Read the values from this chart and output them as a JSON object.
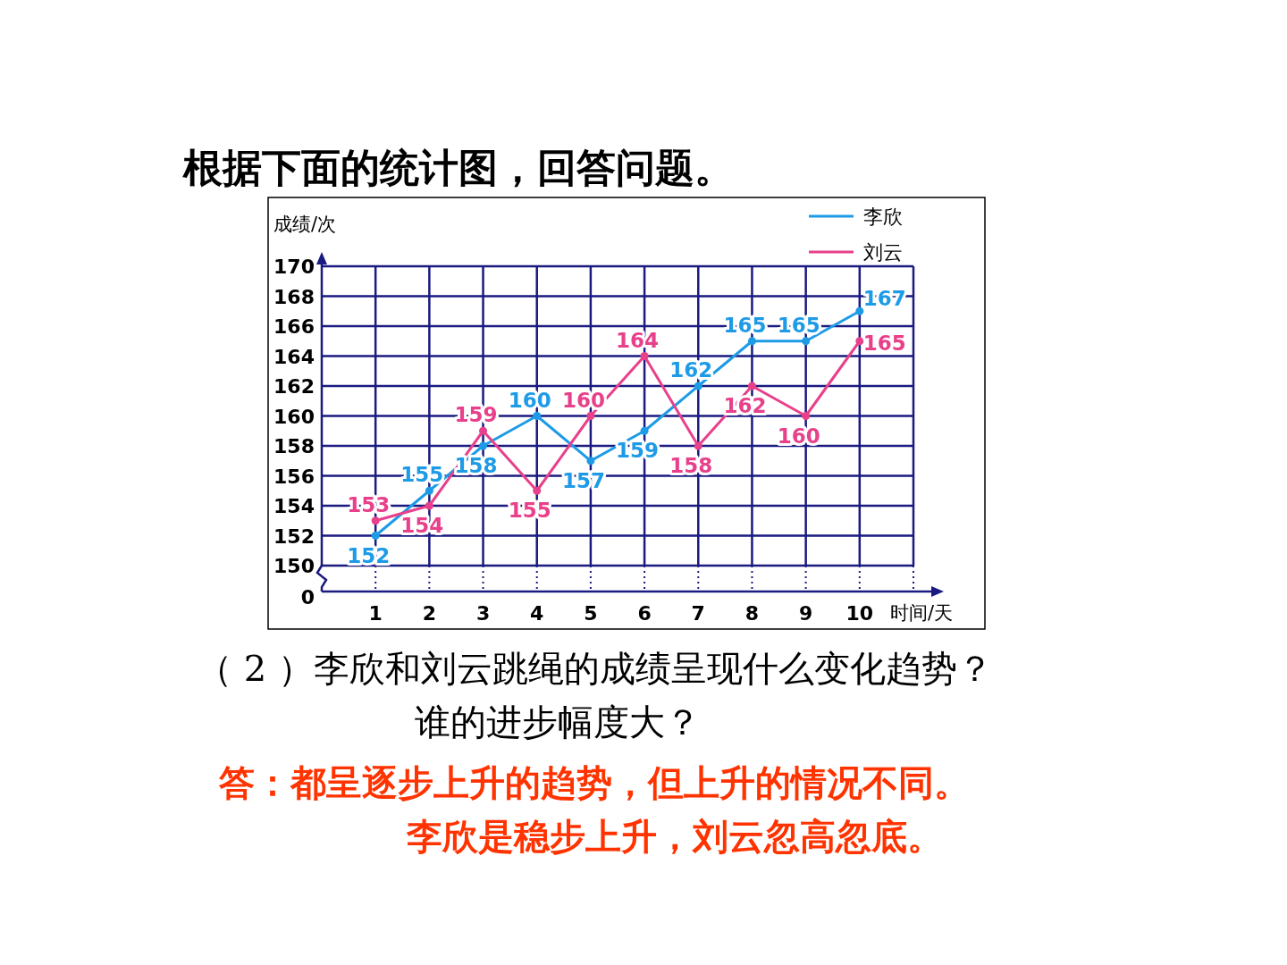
{
  "chart_data": {
    "type": "line",
    "title": "根据下面的统计图，回答问题。",
    "ylabel": "成绩/次",
    "xlabel": "时间/天",
    "x": [
      1,
      2,
      3,
      4,
      5,
      6,
      7,
      8,
      9,
      10
    ],
    "xlim": [
      0,
      11
    ],
    "xticks": [
      1,
      2,
      3,
      4,
      5,
      6,
      7,
      8,
      9,
      10
    ],
    "ylim": [
      150,
      170
    ],
    "yticks": [
      150,
      152,
      154,
      156,
      158,
      160,
      162,
      164,
      166,
      168,
      170
    ],
    "series": [
      {
        "name": "李欣",
        "color": "#1e9be6",
        "values": [
          152,
          155,
          158,
          160,
          157,
          159,
          162,
          165,
          165,
          167
        ]
      },
      {
        "name": "刘云",
        "color": "#e8408a",
        "values": [
          153,
          154,
          159,
          155,
          160,
          164,
          158,
          162,
          160,
          165
        ]
      }
    ],
    "grid": true,
    "legend": "top right",
    "marker": "circle",
    "line_style": "solid",
    "data_labels": true,
    "annotations": [
      "0",
      "（ 2 ）李欣和刘云跳绳的成绩呈现什么变化趋势？",
      "谁的进步幅度大？",
      "答：都呈逐步上升的趋势，但上升的情况不同。",
      "李欣是稳步上升，刘云忽高忽底。"
    ]
  }
}
